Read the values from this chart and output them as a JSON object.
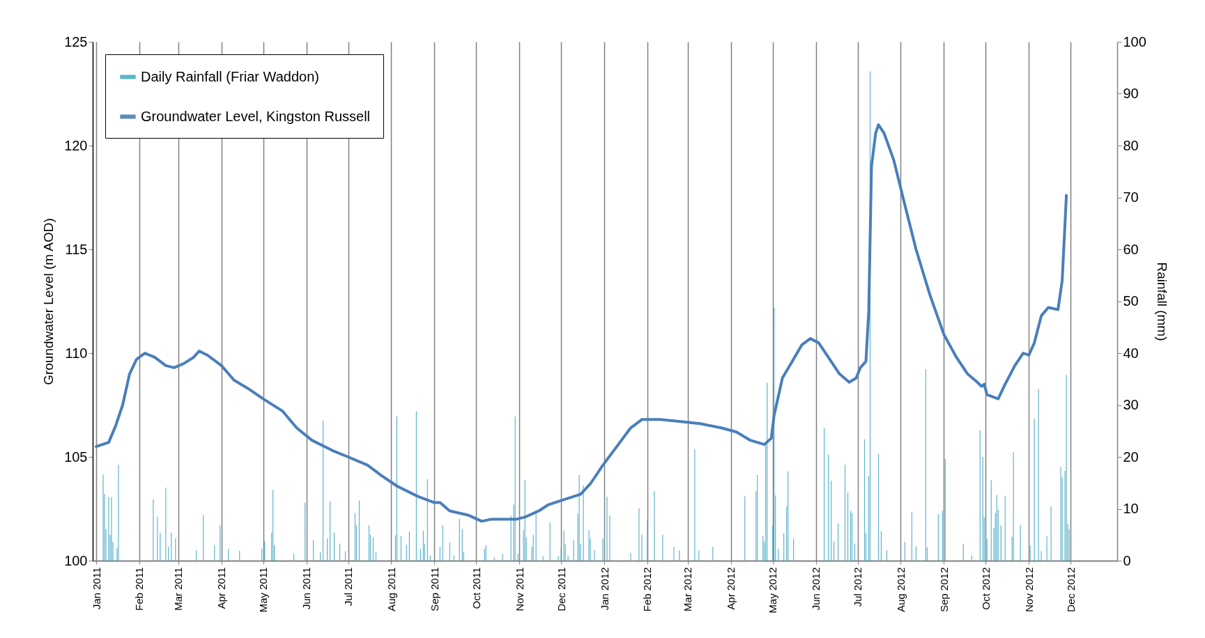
{
  "chart_data": {
    "type": "line",
    "ylabel": "Groundwater Level (m AOD)",
    "y2label": "Rainfall (mm)",
    "legend": "top left",
    "grid": "x",
    "marker": "none",
    "xlim": [
      "2011-01-01",
      "2013-01-01"
    ],
    "xticks": [
      {
        "value": "2011-01-01",
        "label": "Jan 2011"
      },
      {
        "value": "2011-02-01",
        "label": "Feb 2011"
      },
      {
        "value": "2011-03-01",
        "label": "Mar 2011"
      },
      {
        "value": "2011-04-01",
        "label": "Apr 2011"
      },
      {
        "value": "2011-05-01",
        "label": "May 2011"
      },
      {
        "value": "2011-06-01",
        "label": "Jun 2011"
      },
      {
        "value": "2011-07-01",
        "label": "Jul 2011"
      },
      {
        "value": "2011-08-01",
        "label": "Aug 2011"
      },
      {
        "value": "2011-09-01",
        "label": "Sep 2011"
      },
      {
        "value": "2011-10-01",
        "label": "Oct 2011"
      },
      {
        "value": "2011-11-01",
        "label": "Nov 2011"
      },
      {
        "value": "2011-12-01",
        "label": "Dec 2011"
      },
      {
        "value": "2012-01-01",
        "label": "Jan 2012"
      },
      {
        "value": "2012-02-01",
        "label": "Feb 2012"
      },
      {
        "value": "2012-03-01",
        "label": "Mar 2012"
      },
      {
        "value": "2012-04-01",
        "label": "Apr 2012"
      },
      {
        "value": "2012-05-01",
        "label": "May 2012"
      },
      {
        "value": "2012-06-01",
        "label": "Jun 2012"
      },
      {
        "value": "2012-07-01",
        "label": "Jul 2012"
      },
      {
        "value": "2012-08-01",
        "label": "Aug 2012"
      },
      {
        "value": "2012-09-01",
        "label": "Sep 2012"
      },
      {
        "value": "2012-10-01",
        "label": "Oct 2012"
      },
      {
        "value": "2012-11-01",
        "label": "Nov 2012"
      },
      {
        "value": "2012-12-01",
        "label": "Dec 2012"
      }
    ],
    "ylim": [
      100,
      125
    ],
    "yticks": [
      100,
      105,
      110,
      115,
      120,
      125
    ],
    "y2lim": [
      0,
      100
    ],
    "y2ticks": [
      0,
      10,
      20,
      30,
      40,
      50,
      60,
      70,
      80,
      90,
      100
    ],
    "series": [
      {
        "name": "Daily Rainfall (Friar Waddon)",
        "type": "bar",
        "axis": "y2",
        "color": "#4bacc6",
        "x": [
          "2011-01-06",
          "2011-01-07",
          "2011-01-08",
          "2011-01-10",
          "2011-01-11",
          "2011-01-12",
          "2011-01-13",
          "2011-01-16",
          "2011-01-17",
          "2011-02-11",
          "2011-02-14",
          "2011-02-16",
          "2011-02-20",
          "2011-02-22",
          "2011-02-24",
          "2011-02-27",
          "2011-03-14",
          "2011-03-19",
          "2011-03-27",
          "2011-03-31",
          "2011-04-06",
          "2011-04-14",
          "2011-04-30",
          "2011-05-02",
          "2011-05-07",
          "2011-05-08",
          "2011-05-09",
          "2011-05-23",
          "2011-05-31",
          "2011-06-06",
          "2011-06-11",
          "2011-06-13",
          "2011-06-16",
          "2011-06-18",
          "2011-06-21",
          "2011-06-25",
          "2011-06-29",
          "2011-07-06",
          "2011-07-07",
          "2011-07-09",
          "2011-07-16",
          "2011-07-17",
          "2011-07-19",
          "2011-07-21",
          "2011-08-04",
          "2011-08-05",
          "2011-08-08",
          "2011-08-12",
          "2011-08-14",
          "2011-08-19",
          "2011-08-22",
          "2011-08-24",
          "2011-08-25",
          "2011-08-27",
          "2011-08-29",
          "2011-09-05",
          "2011-09-07",
          "2011-09-12",
          "2011-09-15",
          "2011-09-19",
          "2011-09-21",
          "2011-09-22",
          "2011-10-07",
          "2011-10-08",
          "2011-10-14",
          "2011-10-20",
          "2011-10-26",
          "2011-10-28",
          "2011-10-29",
          "2011-10-31",
          "2011-11-04",
          "2011-11-05",
          "2011-11-06",
          "2011-11-10",
          "2011-11-11",
          "2011-11-13",
          "2011-11-18",
          "2011-11-23",
          "2011-11-29",
          "2011-12-01",
          "2011-12-03",
          "2011-12-04",
          "2011-12-06",
          "2011-12-10",
          "2011-12-13",
          "2011-12-14",
          "2011-12-15",
          "2011-12-17",
          "2011-12-21",
          "2011-12-22",
          "2011-12-25",
          "2011-12-31",
          "2012-01-03",
          "2012-01-05",
          "2012-01-20",
          "2012-01-26",
          "2012-01-28",
          "2012-02-01",
          "2012-02-06",
          "2012-02-12",
          "2012-02-20",
          "2012-02-24",
          "2012-03-06",
          "2012-03-09",
          "2012-03-19",
          "2012-04-11",
          "2012-04-19",
          "2012-04-20",
          "2012-04-24",
          "2012-04-25",
          "2012-04-26",
          "2012-04-27",
          "2012-05-01",
          "2012-05-02",
          "2012-05-03",
          "2012-05-05",
          "2012-05-09",
          "2012-05-11",
          "2012-05-12",
          "2012-05-16",
          "2012-06-07",
          "2012-06-10",
          "2012-06-12",
          "2012-06-14",
          "2012-06-17",
          "2012-06-22",
          "2012-06-24",
          "2012-06-26",
          "2012-06-27",
          "2012-06-29",
          "2012-07-06",
          "2012-07-07",
          "2012-07-09",
          "2012-07-10",
          "2012-07-16",
          "2012-07-18",
          "2012-07-22",
          "2012-08-04",
          "2012-08-09",
          "2012-08-12",
          "2012-08-19",
          "2012-08-20",
          "2012-08-28",
          "2012-08-31",
          "2012-09-02",
          "2012-09-15",
          "2012-09-21",
          "2012-09-27",
          "2012-09-29",
          "2012-09-30",
          "2012-10-02",
          "2012-10-05",
          "2012-10-07",
          "2012-10-08",
          "2012-10-09",
          "2012-10-10",
          "2012-10-12",
          "2012-10-15",
          "2012-10-20",
          "2012-10-21",
          "2012-10-26",
          "2012-11-02",
          "2012-11-05",
          "2012-11-08",
          "2012-11-10",
          "2012-11-14",
          "2012-11-17",
          "2012-11-24",
          "2012-11-25",
          "2012-11-27",
          "2012-11-28",
          "2012-11-29",
          "2012-11-30"
        ],
        "values": [
          16.6,
          12.9,
          6.1,
          12.2,
          5.0,
          12.2,
          3.6,
          2.5,
          18.5,
          11.8,
          8.5,
          5.4,
          14.1,
          2.7,
          5.4,
          4.3,
          2.0,
          8.8,
          3.0,
          6.8,
          2.3,
          1.9,
          2.3,
          3.7,
          5.4,
          13.7,
          3.0,
          1.3,
          11.2,
          4.0,
          1.6,
          27.0,
          4.3,
          11.4,
          5.4,
          3.3,
          1.8,
          9.2,
          6.8,
          11.6,
          6.8,
          5.0,
          4.5,
          1.6,
          4.9,
          27.8,
          4.8,
          3.1,
          5.6,
          28.8,
          2.3,
          5.8,
          3.2,
          15.7,
          1.0,
          2.7,
          6.8,
          3.5,
          1.0,
          8.1,
          6.1,
          1.6,
          2.3,
          3.0,
          0.6,
          1.3,
          8.7,
          10.8,
          27.8,
          1.3,
          5.9,
          15.6,
          4.5,
          2.7,
          5.0,
          9.8,
          0.9,
          7.3,
          0.9,
          2.3,
          5.7,
          3.2,
          1.0,
          4.0,
          9.0,
          16.5,
          3.3,
          14.5,
          5.9,
          4.3,
          2.0,
          4.3,
          12.3,
          8.7,
          1.5,
          10.1,
          5.0,
          7.8,
          13.4,
          5.0,
          2.7,
          2.0,
          21.5,
          2.0,
          2.7,
          12.4,
          13.4,
          16.5,
          4.8,
          3.7,
          22.4,
          34.3,
          6.8,
          48.8,
          12.6,
          2.3,
          5.3,
          10.5,
          17.2,
          4.3,
          25.5,
          20.5,
          15.4,
          3.7,
          7.2,
          18.5,
          13.1,
          9.6,
          9.2,
          3.3,
          23.4,
          5.3,
          16.3,
          94.3,
          20.6,
          5.7,
          2.0,
          3.6,
          9.3,
          2.8,
          36.9,
          2.6,
          9.0,
          9.6,
          19.6,
          3.2,
          1.0,
          25.1,
          20.0,
          8.4,
          4.2,
          15.5,
          6.3,
          9.2,
          12.7,
          9.8,
          6.8,
          12.5,
          4.6,
          20.9,
          6.8,
          2.9,
          27.4,
          33.1,
          1.8,
          4.7,
          10.5,
          18.1,
          16.0,
          17.3,
          35.8,
          7.1,
          6.1
        ]
      },
      {
        "name": "Groundwater Level, Kingston Russell",
        "axis": "y",
        "color": "#4a7ebb",
        "x": [
          "2011-01-01",
          "2011-01-10",
          "2011-01-15",
          "2011-01-20",
          "2011-01-25",
          "2011-01-30",
          "2011-02-05",
          "2011-02-12",
          "2011-02-20",
          "2011-02-26",
          "2011-03-05",
          "2011-03-12",
          "2011-03-16",
          "2011-03-22",
          "2011-04-01",
          "2011-04-10",
          "2011-04-20",
          "2011-05-01",
          "2011-05-15",
          "2011-05-25",
          "2011-06-05",
          "2011-06-20",
          "2011-07-01",
          "2011-07-15",
          "2011-07-25",
          "2011-08-05",
          "2011-08-20",
          "2011-09-01",
          "2011-09-05",
          "2011-09-12",
          "2011-09-25",
          "2011-10-05",
          "2011-10-12",
          "2011-10-30",
          "2011-11-05",
          "2011-11-15",
          "2011-11-22",
          "2011-12-01",
          "2011-12-15",
          "2011-12-22",
          "2011-12-31",
          "2012-01-10",
          "2012-01-20",
          "2012-01-28",
          "2012-02-10",
          "2012-02-25",
          "2012-03-10",
          "2012-03-25",
          "2012-04-05",
          "2012-04-15",
          "2012-04-25",
          "2012-04-30",
          "2012-05-02",
          "2012-05-08",
          "2012-05-15",
          "2012-05-22",
          "2012-05-28",
          "2012-06-03",
          "2012-06-10",
          "2012-06-18",
          "2012-06-25",
          "2012-06-30",
          "2012-07-03",
          "2012-07-07",
          "2012-07-09",
          "2012-07-11",
          "2012-07-14",
          "2012-07-16",
          "2012-07-20",
          "2012-07-27",
          "2012-08-03",
          "2012-08-12",
          "2012-08-22",
          "2012-09-01",
          "2012-09-10",
          "2012-09-18",
          "2012-09-25",
          "2012-09-28",
          "2012-09-30",
          "2012-10-02",
          "2012-10-10",
          "2012-10-15",
          "2012-10-22",
          "2012-10-28",
          "2012-11-01",
          "2012-11-05",
          "2012-11-10",
          "2012-11-15",
          "2012-11-22",
          "2012-11-25",
          "2012-11-28"
        ],
        "values": [
          105.5,
          105.7,
          106.5,
          107.5,
          109.0,
          109.7,
          110.0,
          109.8,
          109.4,
          109.3,
          109.5,
          109.8,
          110.1,
          109.9,
          109.4,
          108.7,
          108.3,
          107.8,
          107.2,
          106.4,
          105.8,
          105.3,
          105.0,
          104.6,
          104.1,
          103.6,
          103.1,
          102.8,
          102.8,
          102.4,
          102.2,
          101.9,
          102.0,
          102.0,
          102.1,
          102.4,
          102.7,
          102.9,
          103.2,
          103.7,
          104.6,
          105.5,
          106.4,
          106.8,
          106.8,
          106.7,
          106.6,
          106.4,
          106.2,
          105.8,
          105.6,
          105.9,
          107.0,
          108.8,
          109.6,
          110.4,
          110.7,
          110.5,
          109.8,
          109.0,
          108.6,
          108.8,
          109.3,
          109.6,
          112.0,
          119.0,
          120.6,
          121.0,
          120.6,
          119.3,
          117.4,
          115.0,
          112.8,
          110.9,
          109.8,
          109.0,
          108.6,
          108.4,
          108.5,
          108.0,
          107.8,
          108.5,
          109.4,
          110.0,
          109.9,
          110.5,
          111.8,
          112.2,
          112.1,
          113.5,
          117.6
        ]
      }
    ]
  }
}
